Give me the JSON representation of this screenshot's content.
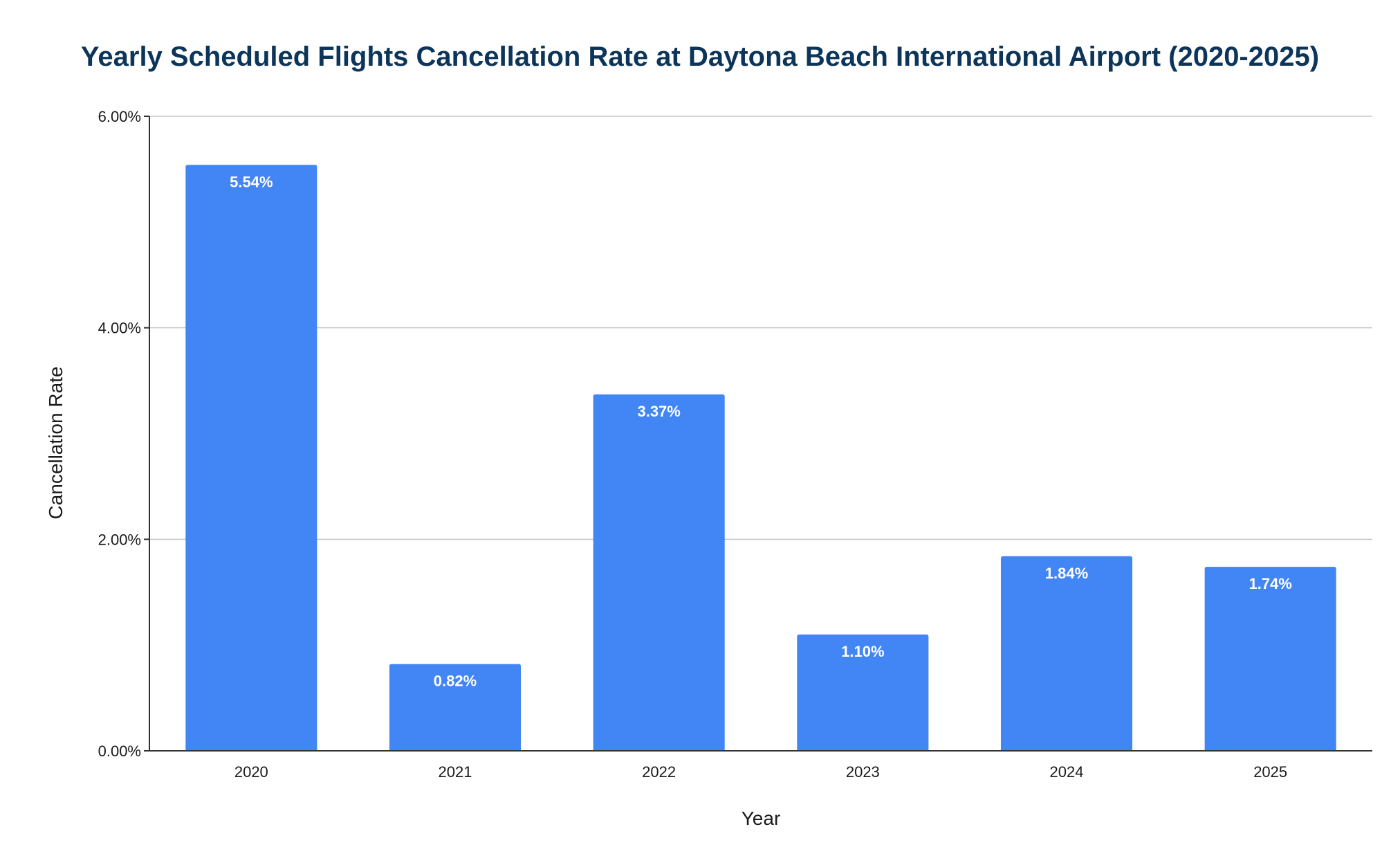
{
  "chart_data": {
    "type": "bar",
    "title": "Yearly Scheduled Flights Cancellation Rate at Daytona Beach International Airport (2020-2025)",
    "xlabel": "Year",
    "ylabel": "Cancellation Rate",
    "categories": [
      "2020",
      "2021",
      "2022",
      "2023",
      "2024",
      "2025"
    ],
    "values": [
      5.54,
      0.82,
      3.37,
      1.1,
      1.84,
      1.74
    ],
    "value_labels": [
      "5.54%",
      "0.82%",
      "3.37%",
      "1.10%",
      "1.84%",
      "1.74%"
    ],
    "ylim": [
      0,
      6
    ],
    "yticks": [
      0,
      2,
      4,
      6
    ],
    "ytick_labels": [
      "0.00%",
      "2.00%",
      "4.00%",
      "6.00%"
    ],
    "grid": true,
    "legend": "none",
    "colors": {
      "bar": "#4285f4",
      "title": "#0d3559",
      "gridline": "#c8c8c8",
      "axis": "#333333",
      "text": "#1a1a1a",
      "bar_label": "#ffffff"
    }
  }
}
